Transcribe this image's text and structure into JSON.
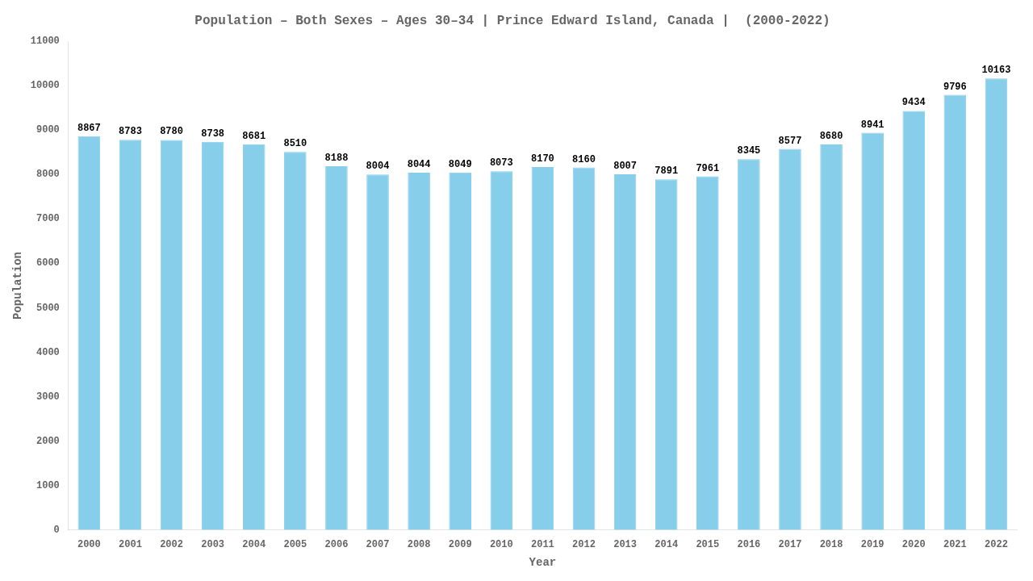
{
  "chart_data": {
    "type": "bar",
    "title": "Population – Both Sexes – Ages 30–34 | Prince Edward Island, Canada |  (2000-2022)",
    "x_label": "Year",
    "y_label": "Population",
    "categories": [
      "2000",
      "2001",
      "2002",
      "2003",
      "2004",
      "2005",
      "2006",
      "2007",
      "2008",
      "2009",
      "2010",
      "2011",
      "2012",
      "2013",
      "2014",
      "2015",
      "2016",
      "2017",
      "2018",
      "2019",
      "2020",
      "2021",
      "2022"
    ],
    "values": [
      8867,
      8783,
      8780,
      8738,
      8681,
      8510,
      8188,
      8004,
      8044,
      8049,
      8073,
      8170,
      8160,
      8007,
      7891,
      7961,
      8345,
      8577,
      8680,
      8941,
      9434,
      9796,
      10163
    ],
    "color": "#87CEEB",
    "ylim": [
      0,
      11000
    ],
    "yticks": [
      0,
      1000,
      2000,
      3000,
      4000,
      5000,
      6000,
      7000,
      8000,
      9000,
      10000,
      11000
    ],
    "grid": false,
    "data_labels": true
  }
}
